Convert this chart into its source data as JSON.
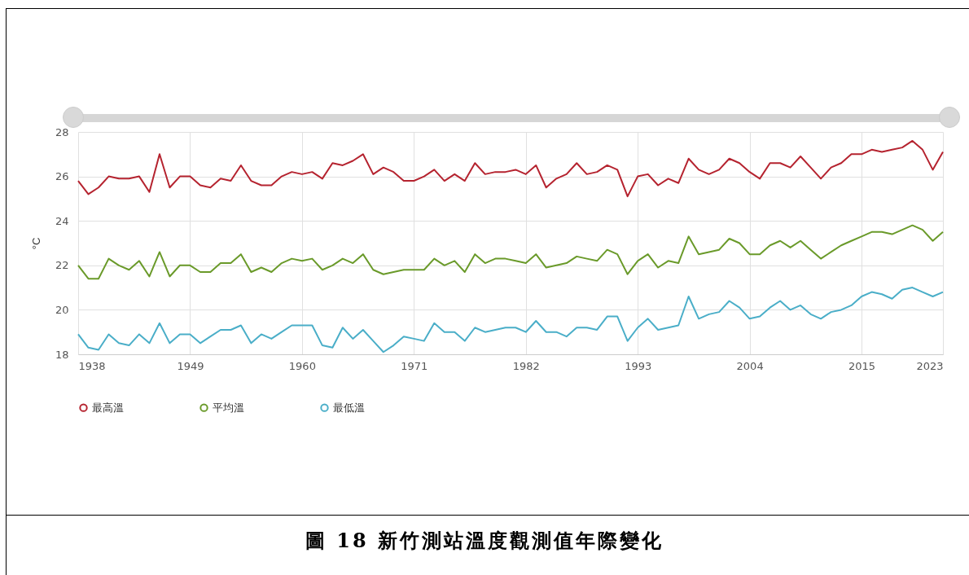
{
  "chart_data": {
    "type": "line",
    "title": "圖 18 新竹測站溫度觀測值年際變化",
    "ylabel": "°C",
    "x": [
      1938,
      1939,
      1940,
      1941,
      1942,
      1943,
      1944,
      1945,
      1946,
      1947,
      1948,
      1949,
      1950,
      1951,
      1952,
      1953,
      1954,
      1955,
      1956,
      1957,
      1958,
      1959,
      1960,
      1961,
      1962,
      1963,
      1964,
      1965,
      1966,
      1967,
      1968,
      1969,
      1970,
      1971,
      1972,
      1973,
      1974,
      1975,
      1976,
      1977,
      1978,
      1979,
      1980,
      1981,
      1982,
      1983,
      1984,
      1985,
      1986,
      1987,
      1988,
      1989,
      1990,
      1991,
      1992,
      1993,
      1994,
      1995,
      1996,
      1997,
      1998,
      1999,
      2000,
      2001,
      2002,
      2003,
      2004,
      2005,
      2006,
      2007,
      2008,
      2009,
      2010,
      2011,
      2012,
      2013,
      2014,
      2015,
      2016,
      2017,
      2018,
      2019,
      2020,
      2021,
      2022,
      2023
    ],
    "series": [
      {
        "name": "最高溫",
        "color": "#b5232f",
        "values": [
          25.8,
          25.2,
          25.5,
          26.0,
          25.9,
          25.9,
          26.0,
          25.3,
          27.0,
          25.5,
          26.0,
          26.0,
          25.6,
          25.5,
          25.9,
          25.8,
          26.5,
          25.8,
          25.6,
          25.6,
          26.0,
          26.2,
          26.1,
          26.2,
          25.9,
          26.6,
          26.5,
          26.7,
          27.0,
          26.1,
          26.4,
          26.2,
          25.8,
          25.8,
          26.0,
          26.3,
          25.8,
          26.1,
          25.8,
          26.6,
          26.1,
          26.2,
          26.2,
          26.3,
          26.1,
          26.5,
          25.5,
          25.9,
          26.1,
          26.6,
          26.1,
          26.2,
          26.5,
          26.3,
          25.1,
          26.0,
          26.1,
          25.6,
          25.9,
          25.7,
          26.8,
          26.3,
          26.1,
          26.3,
          26.8,
          26.6,
          26.2,
          25.9,
          26.6,
          26.6,
          26.4,
          26.9,
          26.4,
          25.9,
          26.4,
          26.6,
          27.0,
          27.0,
          27.2,
          27.1,
          27.2,
          27.3,
          27.6,
          27.2,
          26.3,
          27.1
        ]
      },
      {
        "name": "平均溫",
        "color": "#6a9a2a",
        "values": [
          22.0,
          21.4,
          21.4,
          22.3,
          22.0,
          21.8,
          22.2,
          21.5,
          22.6,
          21.5,
          22.0,
          22.0,
          21.7,
          21.7,
          22.1,
          22.1,
          22.5,
          21.7,
          21.9,
          21.7,
          22.1,
          22.3,
          22.2,
          22.3,
          21.8,
          22.0,
          22.3,
          22.1,
          22.5,
          21.8,
          21.6,
          21.7,
          21.8,
          21.8,
          21.8,
          22.3,
          22.0,
          22.2,
          21.7,
          22.5,
          22.1,
          22.3,
          22.3,
          22.2,
          22.1,
          22.5,
          21.9,
          22.0,
          22.1,
          22.4,
          22.3,
          22.2,
          22.7,
          22.5,
          21.6,
          22.2,
          22.5,
          21.9,
          22.2,
          22.1,
          23.3,
          22.5,
          22.6,
          22.7,
          23.2,
          23.0,
          22.5,
          22.5,
          22.9,
          23.1,
          22.8,
          23.1,
          22.7,
          22.3,
          22.6,
          22.9,
          23.1,
          23.3,
          23.5,
          23.5,
          23.4,
          23.6,
          23.8,
          23.6,
          23.1,
          23.5
        ]
      },
      {
        "name": "最低溫",
        "color": "#4aaec8",
        "values": [
          18.9,
          18.3,
          18.2,
          18.9,
          18.5,
          18.4,
          18.9,
          18.5,
          19.4,
          18.5,
          18.9,
          18.9,
          18.5,
          18.8,
          19.1,
          19.1,
          19.3,
          18.5,
          18.9,
          18.7,
          19.0,
          19.3,
          19.3,
          19.3,
          18.4,
          18.3,
          19.2,
          18.7,
          19.1,
          18.6,
          18.1,
          18.4,
          18.8,
          18.7,
          18.6,
          19.4,
          19.0,
          19.0,
          18.6,
          19.2,
          19.0,
          19.1,
          19.2,
          19.2,
          19.0,
          19.5,
          19.0,
          19.0,
          18.8,
          19.2,
          19.2,
          19.1,
          19.7,
          19.7,
          18.6,
          19.2,
          19.6,
          19.1,
          19.2,
          19.3,
          20.6,
          19.6,
          19.8,
          19.9,
          20.4,
          20.1,
          19.6,
          19.7,
          20.1,
          20.4,
          20.0,
          20.2,
          19.8,
          19.6,
          19.9,
          20.0,
          20.2,
          20.6,
          20.8,
          20.7,
          20.5,
          20.9,
          21.0,
          20.8,
          20.6,
          20.8
        ]
      }
    ],
    "xlim": [
      1938,
      2023
    ],
    "xticks": [
      1938,
      1949,
      1960,
      1971,
      1982,
      1993,
      2004,
      2015,
      2023
    ],
    "ylim": [
      18,
      28
    ],
    "yticks": [
      18,
      20,
      22,
      24,
      26,
      28
    ],
    "grid": true,
    "legend": "bottom"
  }
}
